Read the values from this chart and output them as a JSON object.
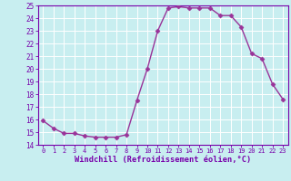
{
  "x": [
    0,
    1,
    2,
    3,
    4,
    5,
    6,
    7,
    8,
    9,
    10,
    11,
    12,
    13,
    14,
    15,
    16,
    17,
    18,
    19,
    20,
    21,
    22,
    23
  ],
  "y": [
    15.9,
    15.3,
    14.9,
    14.9,
    14.7,
    14.6,
    14.6,
    14.6,
    14.8,
    17.5,
    20.0,
    23.0,
    24.8,
    24.9,
    24.8,
    24.8,
    24.8,
    24.2,
    24.2,
    23.3,
    21.2,
    20.8,
    18.8,
    17.6
  ],
  "line_color": "#993399",
  "marker": "D",
  "marker_size": 2.5,
  "bg_color": "#c8eef0",
  "grid_color": "#ffffff",
  "xlabel": "Windchill (Refroidissement éolien,°C)",
  "xlabel_color": "#7700aa",
  "tick_color": "#7700aa",
  "ylim": [
    14,
    25
  ],
  "xlim": [
    -0.5,
    23.5
  ],
  "yticks": [
    14,
    15,
    16,
    17,
    18,
    19,
    20,
    21,
    22,
    23,
    24,
    25
  ],
  "xticks": [
    0,
    1,
    2,
    3,
    4,
    5,
    6,
    7,
    8,
    9,
    10,
    11,
    12,
    13,
    14,
    15,
    16,
    17,
    18,
    19,
    20,
    21,
    22,
    23
  ],
  "spine_color": "#7700aa",
  "linewidth": 1.0,
  "tick_fontsize": 5.5,
  "xlabel_fontsize": 6.2
}
